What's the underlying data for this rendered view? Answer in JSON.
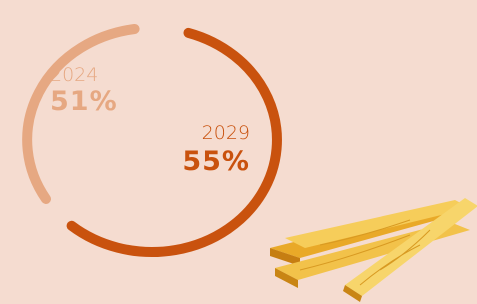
{
  "items": [
    {
      "year": "2024",
      "value": "51%"
    },
    {
      "year": "2029",
      "value": "55%"
    }
  ]
}
